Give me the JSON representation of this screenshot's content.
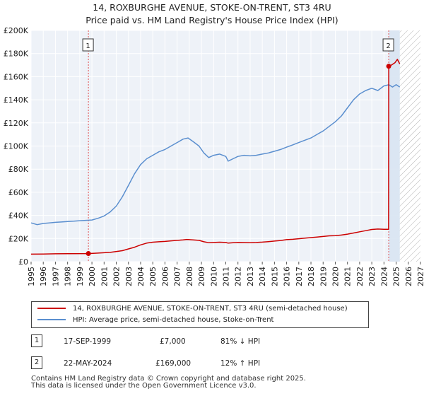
{
  "title": "14, ROXBURGHE AVENUE, STOKE-ON-TRENT, ST3 4RU",
  "subtitle": "Price paid vs. HM Land Registry's House Price Index (HPI)",
  "chart_data": {
    "type": "line",
    "xlim": [
      1995,
      2027
    ],
    "ylim": [
      0,
      200000
    ],
    "x_ticks": [
      "1995",
      "1996",
      "1997",
      "1998",
      "1999",
      "2000",
      "2001",
      "2002",
      "2003",
      "2004",
      "2005",
      "2006",
      "2007",
      "2008",
      "2009",
      "2010",
      "2011",
      "2012",
      "2013",
      "2014",
      "2015",
      "2016",
      "2017",
      "2018",
      "2019",
      "2020",
      "2021",
      "2022",
      "2023",
      "2024",
      "2025",
      "2026",
      "2027"
    ],
    "y_ticks": [
      {
        "value": 0,
        "label": "£0"
      },
      {
        "value": 20000,
        "label": "£20K"
      },
      {
        "value": 40000,
        "label": "£40K"
      },
      {
        "value": 60000,
        "label": "£60K"
      },
      {
        "value": 80000,
        "label": "£80K"
      },
      {
        "value": 100000,
        "label": "£100K"
      },
      {
        "value": 120000,
        "label": "£120K"
      },
      {
        "value": 140000,
        "label": "£140K"
      },
      {
        "value": 160000,
        "label": "£160K"
      },
      {
        "value": 180000,
        "label": "£180K"
      },
      {
        "value": 200000,
        "label": "£200K"
      }
    ],
    "shaded_region": {
      "from": 2024.39,
      "to": 2027
    },
    "hatched_region": {
      "from": 2025.3,
      "to": 2027
    },
    "series": [
      {
        "name": "14, ROXBURGHE AVENUE, STOKE-ON-TRENT, ST3 4RU (semi-detached house)",
        "color": "#cc0000",
        "x": [
          1995.0,
          1996.0,
          1997.0,
          1998.0,
          1999.71,
          2000.5,
          2001.5,
          2002.5,
          2003.0,
          2003.5,
          2004.0,
          2004.5,
          2005.0,
          2005.5,
          2006.0,
          2006.5,
          2007.0,
          2007.5,
          2007.8,
          2008.3,
          2008.8,
          2009.2,
          2009.6,
          2010.0,
          2010.5,
          2011.0,
          2011.2,
          2011.6,
          2012.0,
          2012.5,
          2013.0,
          2013.5,
          2014.0,
          2014.5,
          2015.0,
          2015.5,
          2016.0,
          2016.5,
          2017.0,
          2017.5,
          2018.0,
          2018.5,
          2019.0,
          2019.5,
          2020.0,
          2020.5,
          2021.0,
          2021.5,
          2022.0,
          2022.5,
          2023.0,
          2023.5,
          2024.0,
          2024.38,
          2024.39,
          2024.6,
          2024.9,
          2025.1,
          2025.3
        ],
        "y": [
          6500,
          6600,
          6800,
          6900,
          7000,
          7400,
          8000,
          9500,
          11000,
          12500,
          14500,
          16000,
          16800,
          17200,
          17500,
          18000,
          18400,
          18800,
          19200,
          18800,
          18400,
          17200,
          16400,
          16600,
          16800,
          16600,
          16000,
          16300,
          16600,
          16500,
          16400,
          16600,
          16900,
          17300,
          17800,
          18300,
          19000,
          19300,
          19800,
          20300,
          20800,
          21200,
          21800,
          22300,
          22500,
          23000,
          23800,
          24800,
          25800,
          26800,
          27800,
          28200,
          28000,
          28000,
          169000,
          170000,
          172000,
          175000,
          171000
        ]
      },
      {
        "name": "HPI: Average price, semi-detached house, Stoke-on-Trent",
        "color": "#5b8fcf",
        "x": [
          1995.0,
          1995.5,
          1996.0,
          1996.5,
          1997.0,
          1997.5,
          1998.0,
          1998.5,
          1999.0,
          1999.5,
          2000.0,
          2000.5,
          2001.0,
          2001.5,
          2002.0,
          2002.5,
          2003.0,
          2003.5,
          2004.0,
          2004.5,
          2005.0,
          2005.5,
          2006.0,
          2006.5,
          2007.0,
          2007.5,
          2007.9,
          2008.3,
          2008.8,
          2009.2,
          2009.6,
          2010.0,
          2010.5,
          2011.0,
          2011.2,
          2011.6,
          2012.0,
          2012.5,
          2013.0,
          2013.5,
          2014.0,
          2014.5,
          2015.0,
          2015.5,
          2016.0,
          2016.5,
          2017.0,
          2017.5,
          2018.0,
          2018.5,
          2019.0,
          2019.5,
          2020.0,
          2020.5,
          2021.0,
          2021.5,
          2022.0,
          2022.5,
          2023.0,
          2023.5,
          2024.0,
          2024.4,
          2024.7,
          2025.0,
          2025.3
        ],
        "y": [
          33500,
          32000,
          33000,
          33500,
          34000,
          34300,
          34700,
          35000,
          35400,
          35700,
          36000,
          37500,
          39500,
          43000,
          48000,
          56000,
          66000,
          76000,
          84000,
          89000,
          92000,
          95000,
          97000,
          100000,
          103000,
          106000,
          107000,
          104000,
          100000,
          94000,
          90000,
          92000,
          93000,
          91000,
          87000,
          89000,
          91000,
          92000,
          91500,
          92000,
          93000,
          94000,
          95500,
          97000,
          99000,
          101000,
          103000,
          105000,
          107000,
          110000,
          113000,
          117000,
          121000,
          126000,
          133000,
          140000,
          145000,
          148000,
          150000,
          148000,
          152000,
          153000,
          151000,
          153000,
          151000
        ]
      }
    ],
    "sales": [
      {
        "label": "1",
        "x": 1999.71,
        "y": 7000
      },
      {
        "label": "2",
        "x": 2024.39,
        "y": 169000
      }
    ]
  },
  "legend": {
    "items": [
      {
        "label": "14, ROXBURGHE AVENUE, STOKE-ON-TRENT, ST3 4RU (semi-detached house)",
        "color": "#cc0000"
      },
      {
        "label": "HPI: Average price, semi-detached house, Stoke-on-Trent",
        "color": "#5b8fcf"
      }
    ]
  },
  "sales_table": [
    {
      "num": "1",
      "date": "17-SEP-1999",
      "price": "£7,000",
      "hpi": "81% ↓ HPI"
    },
    {
      "num": "2",
      "date": "22-MAY-2024",
      "price": "£169,000",
      "hpi": "12% ↑ HPI"
    }
  ],
  "footer": {
    "line1": "Contains HM Land Registry data © Crown copyright and database right 2025.",
    "line2": "This data is licensed under the Open Government Licence v3.0."
  }
}
